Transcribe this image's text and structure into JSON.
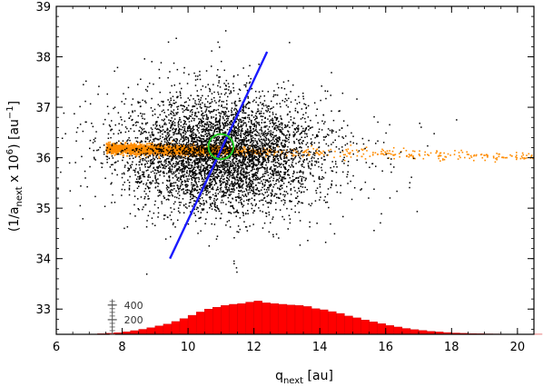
{
  "chart_data": {
    "type": "scatter",
    "title": "",
    "xlabel": {
      "base": "q",
      "sub": "next",
      "unit": " [au]"
    },
    "ylabel": {
      "open": "(1/a",
      "sub": "next",
      "mid": " x 10",
      "sup": "6",
      "close": ") [au",
      "unitSup": "−1",
      "end": "]"
    },
    "xlim": [
      6,
      20.5
    ],
    "ylim": [
      32.5,
      39
    ],
    "x_ticks": [
      "6",
      "8",
      "10",
      "12",
      "14",
      "16",
      "18",
      "20"
    ],
    "y_ticks": [
      "33",
      "34",
      "35",
      "36",
      "37",
      "38",
      "39"
    ],
    "grid": false,
    "colors": {
      "clones": "#000000",
      "orange_band": "#ff8c00",
      "fit_line": "#1a1aff",
      "nominal_circle": "#22cc22",
      "histogram": "#ff0000"
    },
    "series": [
      {
        "kind": "scatter-cloud",
        "center": [
          11.0,
          36.1
        ],
        "sd": [
          1.4,
          0.55
        ],
        "count": 5000,
        "color": "#000000"
      },
      {
        "kind": "scatter-band",
        "x_range": [
          7.5,
          20.5
        ],
        "y_center": 36.15,
        "y_sd": 0.05,
        "count": 3000,
        "color": "#ff8c00"
      },
      {
        "kind": "line",
        "x": [
          9.45,
          12.4
        ],
        "y": [
          34.0,
          38.1
        ],
        "color": "#1a1aff"
      },
      {
        "kind": "circle",
        "center": [
          11.0,
          36.22
        ],
        "radius_x": 0.38,
        "color": "#22cc22"
      }
    ],
    "histogram": {
      "bin_width": 0.25,
      "x_start": 6.75,
      "counts": [
        2,
        4,
        8,
        14,
        22,
        34,
        50,
        68,
        90,
        115,
        140,
        175,
        215,
        260,
        305,
        345,
        370,
        395,
        410,
        420,
        440,
        455,
        430,
        420,
        410,
        400,
        395,
        380,
        350,
        335,
        310,
        285,
        250,
        225,
        195,
        170,
        145,
        120,
        100,
        80,
        64,
        52,
        40,
        32,
        24,
        18,
        14,
        10,
        8,
        6,
        5,
        4,
        3,
        2,
        2,
        1
      ],
      "color": "#ff0000",
      "scale_ticks": [
        "200",
        "400"
      ],
      "scale_values": [
        200,
        400
      ]
    }
  }
}
